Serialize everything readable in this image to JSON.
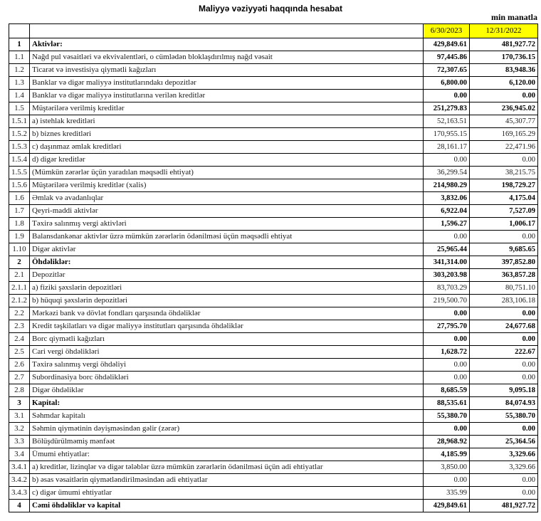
{
  "title": "Maliyyə vəziyyəti haqqında hesabat",
  "unit_note": "min manatla",
  "columns": {
    "date1": "6/30/2023",
    "date2": "12/31/2022"
  },
  "colors": {
    "header_highlight": "#FFFF00",
    "border": "#000000",
    "text": "#000000"
  },
  "rows": [
    {
      "num": "1",
      "label": "Aktivlər:",
      "v1": "429,849.61",
      "v2": "481,927.72",
      "section": true,
      "bold_values": true
    },
    {
      "num": "1.1",
      "label": "Nağd pul vəsaitləri və  ekvivalentləri, o cümlədən bloklaşdırılmış nağd vəsait",
      "v1": "97,445.86",
      "v2": "170,736.15",
      "section": false,
      "bold_values": true
    },
    {
      "num": "1.2",
      "label": "Ticarət və investisiya qiymətli kağızları",
      "v1": "72,307.65",
      "v2": "83,948.36",
      "section": false,
      "bold_values": true
    },
    {
      "num": "1.3",
      "label": "Banklar və digər maliyyə institutlarındakı depozitlər",
      "v1": "6,800.00",
      "v2": "6,120.00",
      "section": false,
      "bold_values": true
    },
    {
      "num": "1.4",
      "label": "Banklar və digər maliyyə institutlarına verilən kreditlər",
      "v1": "0.00",
      "v2": "0.00",
      "section": false,
      "bold_values": true
    },
    {
      "num": "1.5",
      "label": "Müştərilərə verilmiş kreditlər",
      "v1": "251,279.83",
      "v2": "236,945.02",
      "section": false,
      "bold_values": true
    },
    {
      "num": "1.5.1",
      "label": "a) istehlak kreditləri",
      "v1": "52,163.51",
      "v2": "45,307.77",
      "section": false,
      "bold_values": false
    },
    {
      "num": "1.5.2",
      "label": "b) biznes kreditləri",
      "v1": "170,955.15",
      "v2": "169,165.29",
      "section": false,
      "bold_values": false
    },
    {
      "num": "1.5.3",
      "label": "c) daşınmaz əmlak kreditləri",
      "v1": "28,161.17",
      "v2": "22,471.96",
      "section": false,
      "bold_values": false
    },
    {
      "num": "1.5.4",
      "label": "d) digər kreditlər",
      "v1": "0.00",
      "v2": "0.00",
      "section": false,
      "bold_values": false
    },
    {
      "num": "1.5.5",
      "label": "(Mümkün zərərlər üçün yaradılan məqsədli ehtiyat)",
      "v1": "36,299.54",
      "v2": "38,215.75",
      "section": false,
      "bold_values": false
    },
    {
      "num": "1.5.6",
      "label": "Müştərilərə verilmiş kreditlər (xalis)",
      "v1": "214,980.29",
      "v2": "198,729.27",
      "section": false,
      "bold_values": true
    },
    {
      "num": "1.6",
      "label": "Əmlak və avadanlıqlar",
      "v1": "3,832.06",
      "v2": "4,175.04",
      "section": false,
      "bold_values": true
    },
    {
      "num": "1.7",
      "label": "Qeyri-maddi aktivlər",
      "v1": "6,922.04",
      "v2": "7,527.09",
      "section": false,
      "bold_values": true
    },
    {
      "num": "1.8",
      "label": "Təxirə salınmış vergi aktivləri",
      "v1": "1,596.27",
      "v2": "1,006.17",
      "section": false,
      "bold_values": true
    },
    {
      "num": "1.9",
      "label": "Balansdankənar aktivlər üzrə mümkün zərərlərin ödənilməsi üçün məqsədli ehtiyat",
      "v1": "0.00",
      "v2": "0.00",
      "section": false,
      "bold_values": false
    },
    {
      "num": "1.10",
      "label": "Digər aktivlər",
      "v1": "25,965.44",
      "v2": "9,685.65",
      "section": false,
      "bold_values": true
    },
    {
      "num": "2",
      "label": "Öhdəliklər:",
      "v1": "341,314.00",
      "v2": "397,852.80",
      "section": true,
      "bold_values": true
    },
    {
      "num": "2.1",
      "label": "Depozitlər",
      "v1": "303,203.98",
      "v2": "363,857.28",
      "section": false,
      "bold_values": true
    },
    {
      "num": "2.1.1",
      "label": "a) fiziki şəxslərin depozitləri",
      "v1": "83,703.29",
      "v2": "80,751.10",
      "section": false,
      "bold_values": false
    },
    {
      "num": "2.1.2",
      "label": "b) hüquqi şəxslərin depozitləri",
      "v1": "219,500.70",
      "v2": "283,106.18",
      "section": false,
      "bold_values": false
    },
    {
      "num": "2.2",
      "label": "Mərkəzi bank və dövlət fondları qarşısında öhdəliklər",
      "v1": "0.00",
      "v2": "0.00",
      "section": false,
      "bold_values": true
    },
    {
      "num": "2.3",
      "label": "Kredit təşkilatları və digər maliyyə institutları qarşısında öhdəliklər",
      "v1": "27,795.70",
      "v2": "24,677.68",
      "section": false,
      "bold_values": true
    },
    {
      "num": "2.4",
      "label": "Borc qiymətli kağızları",
      "v1": "0.00",
      "v2": "0.00",
      "section": false,
      "bold_values": true
    },
    {
      "num": "2.5",
      "label": "Cari vergi öhdəlikləri",
      "v1": "1,628.72",
      "v2": "222.67",
      "section": false,
      "bold_values": true
    },
    {
      "num": "2.6",
      "label": "Təxirə salınmış vergi öhdəliyi",
      "v1": "0.00",
      "v2": "0.00",
      "section": false,
      "bold_values": false
    },
    {
      "num": "2.7",
      "label": "Subordinasiya borc öhdəlikləri",
      "v1": "0.00",
      "v2": "0.00",
      "section": false,
      "bold_values": false
    },
    {
      "num": "2.8",
      "label": "Digər öhdəliklər",
      "v1": "8,685.59",
      "v2": "9,095.18",
      "section": false,
      "bold_values": true
    },
    {
      "num": "3",
      "label": "Kapital:",
      "v1": "88,535.61",
      "v2": "84,074.93",
      "section": true,
      "bold_values": true
    },
    {
      "num": "3.1",
      "label": "Səhmdar kapitalı",
      "v1": "55,380.70",
      "v2": "55,380.70",
      "section": false,
      "bold_values": true
    },
    {
      "num": "3.2",
      "label": "Səhmin qiymətinin dəyişməsindən gəlir (zərər)",
      "v1": "0.00",
      "v2": "0.00",
      "section": false,
      "bold_values": true
    },
    {
      "num": "3.3",
      "label": "Bölüşdürülməmiş mənfəət",
      "v1": "28,968.92",
      "v2": "25,364.56",
      "section": false,
      "bold_values": true
    },
    {
      "num": "3.4",
      "label": "Ümumi ehtiyatlar:",
      "v1": "4,185.99",
      "v2": "3,329.66",
      "section": false,
      "bold_values": true
    },
    {
      "num": "3.4.1",
      "label": "a) kreditlər, lizinqlər və digər tələblər üzrə mümkün zərərlərin ödənilməsi üçün adi ehtiyatlar",
      "v1": "3,850.00",
      "v2": "3,329.66",
      "section": false,
      "bold_values": false
    },
    {
      "num": "3.4.2",
      "label": "b) əsas vəsaitlərin qiymətləndirilməsindən adi ehtiyatlar",
      "v1": "0.00",
      "v2": "0.00",
      "section": false,
      "bold_values": false
    },
    {
      "num": "3.4.3",
      "label": "c) digər ümumi ehtiyatlar",
      "v1": "335.99",
      "v2": "0.00",
      "section": false,
      "bold_values": false
    },
    {
      "num": "4",
      "label": "Cəmi öhdəliklər və kapital",
      "v1": "429,849.61",
      "v2": "481,927.72",
      "section": true,
      "bold_values": true
    }
  ]
}
